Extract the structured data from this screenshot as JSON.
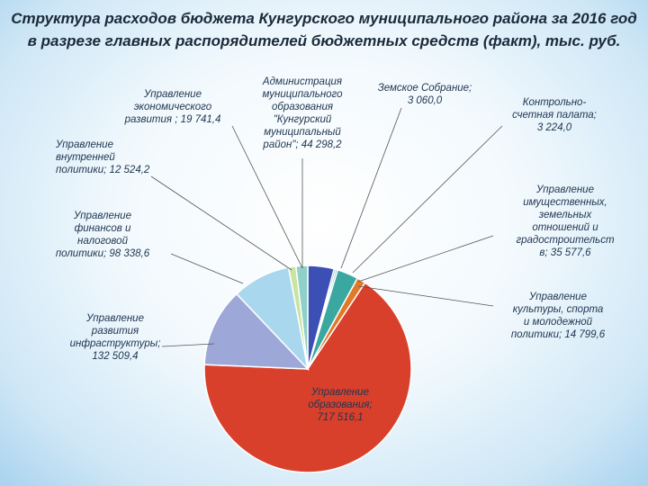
{
  "title": "Структура расходов бюджета Кунгурского муниципального района за 2016 год в разрезе главных распорядителей бюджетных средств (факт),    тыс. руб.",
  "chart_data": {
    "type": "pie",
    "title": "Структура расходов бюджета Кунгурского муниципального района за 2016 год в разрезе главных распорядителей бюджетных средств (факт),    тыс. руб.",
    "slices": [
      {
        "label": "Администрация муниципального образования \"Кунгурский муниципальный район\"",
        "value": 44298.2,
        "value_text": "44 298,2",
        "label_lines": [
          "Администрация",
          "муниципального",
          "образования",
          "\"Кунгурский",
          "муниципальный",
          "район\"; 44 298,2"
        ],
        "color": "#3b4fb5"
      },
      {
        "label": "Земское Собрание",
        "value": 3060.0,
        "value_text": "3 060,0",
        "label_lines": [
          "Земское Собрание;",
          "3 060,0"
        ],
        "color": "#2e8b74"
      },
      {
        "label": "Контрольно-счетная палата",
        "value": 3224.0,
        "value_text": "3 224,0",
        "label_lines": [
          "Контрольно-",
          "счетная палата;",
          "3 224,0"
        ],
        "color": "#52b8a6"
      },
      {
        "label": "Управление имущественных, земельных отношений и градостроительства",
        "value": 35577.6,
        "value_text": "35 577,6",
        "label_lines": [
          "Управление",
          "имущественных,",
          "земельных",
          "отношений и",
          "градостроительст",
          "в; 35 577,6"
        ],
        "color": "#3aa8a0"
      },
      {
        "label": "Управление культуры, спорта и молодежной политики",
        "value": 14799.6,
        "value_text": "14 799,6",
        "label_lines": [
          "Управление",
          "культуры, спорта",
          "и молодежной",
          "политики; 14 799,6"
        ],
        "color": "#e07a2a"
      },
      {
        "label": "Управление образования",
        "value": 717516.1,
        "value_text": "717 516,1",
        "label_lines": [
          "Управление",
          "образования;",
          "717 516,1"
        ],
        "color": "#d8402c"
      },
      {
        "label": "Управление развития инфраструктуры",
        "value": 132509.4,
        "value_text": "132 509,4",
        "label_lines": [
          "Управление",
          "развития",
          "инфраструктуры;",
          "132 509,4"
        ],
        "color": "#9ea8d8"
      },
      {
        "label": "Управление финансов и налоговой политики",
        "value": 98338.6,
        "value_text": "98 338,6",
        "label_lines": [
          "Управление",
          "финансов и",
          "налоговой",
          "политики;  98 338,6"
        ],
        "color": "#a9d8ee"
      },
      {
        "label": "Управление внутренней политики",
        "value": 12524.2,
        "value_text": "12 524,2",
        "label_lines": [
          "Управление",
          "внутренней",
          "политики; 12 524,2"
        ],
        "color": "#c8e4a0"
      },
      {
        "label": "Управление экономического развития",
        "value": 19741.4,
        "value_text": "19 741,4",
        "label_lines": [
          "Управление",
          "экономического",
          "развития ; 19 741,4"
        ],
        "color": "#8fd0c8"
      }
    ]
  }
}
